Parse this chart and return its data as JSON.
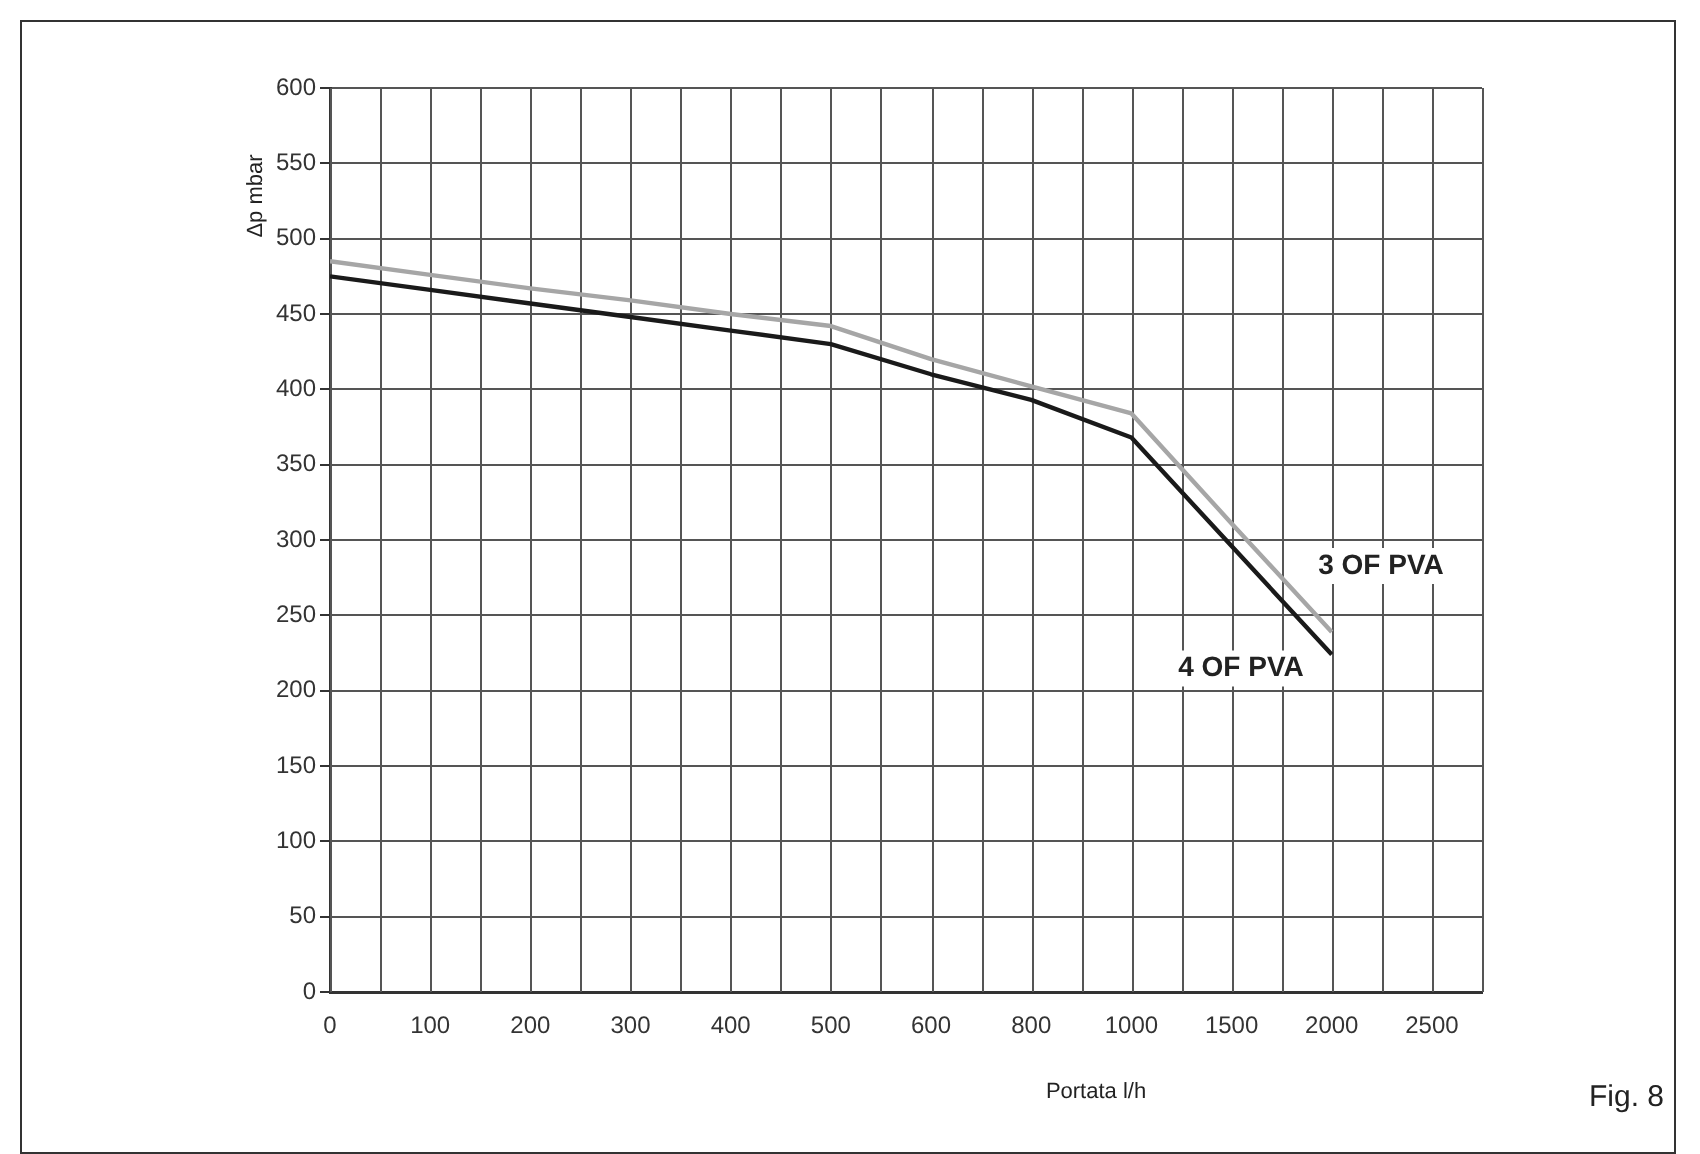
{
  "chart_data": {
    "type": "line",
    "xlabel": "Portata l/h",
    "ylabel": "Δp mbar",
    "categories": [
      "0",
      "100",
      "200",
      "300",
      "400",
      "500",
      "600",
      "800",
      "1000",
      "1500",
      "2000",
      "2500"
    ],
    "series": [
      {
        "name": "3 OF PVA",
        "color": "#a6a6a6",
        "values": [
          485,
          476,
          467,
          459,
          450,
          442,
          420,
          402,
          384,
          311,
          239,
          null
        ]
      },
      {
        "name": "4 OF PVA",
        "color": "#1a1a1a",
        "values": [
          475,
          466,
          457,
          448,
          439,
          430,
          410,
          393,
          368,
          296,
          224,
          null
        ]
      }
    ],
    "ylim": [
      0,
      600
    ],
    "yticks": [
      0,
      50,
      100,
      150,
      200,
      250,
      300,
      350,
      400,
      450,
      500,
      550,
      600
    ],
    "grid": true,
    "legend": false,
    "marker": "none",
    "line_style": "solid",
    "annotations": [
      "Fig. 8"
    ]
  }
}
